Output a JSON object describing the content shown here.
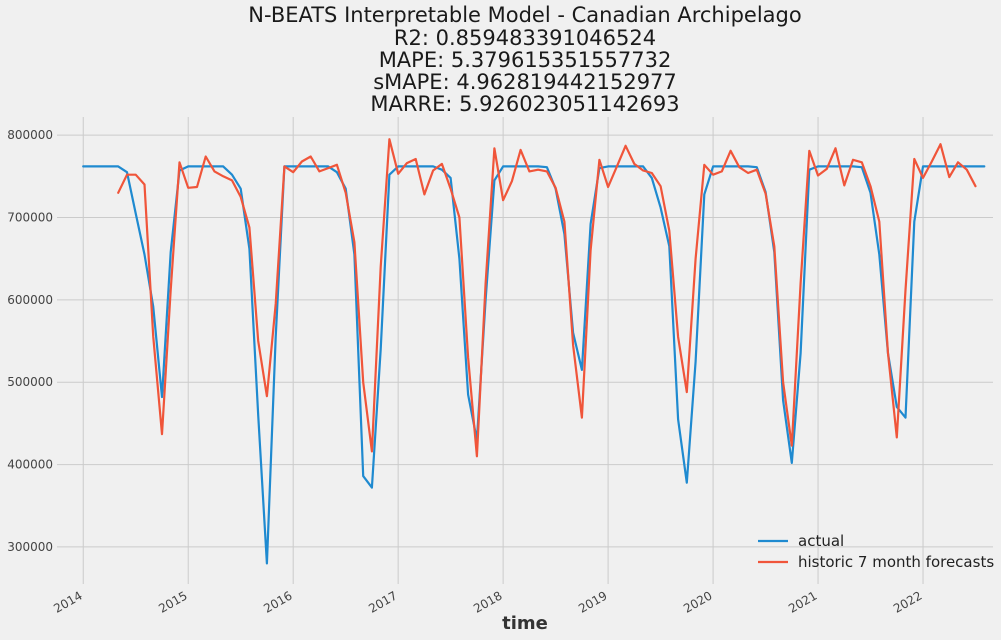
{
  "chart_data": {
    "type": "line",
    "title_lines": [
      "N-BEATS Interpretable Model - Canadian Archipelago",
      "R2: 0.859483391046524",
      "MAPE: 5.379615351557732",
      "sMAPE: 4.962819442152977",
      "MARRE: 5.926023051142693"
    ],
    "xlabel": "time",
    "ylabel": "",
    "x_ticks": [
      "2014",
      "2015",
      "2016",
      "2017",
      "2018",
      "2019",
      "2020",
      "2021",
      "2022"
    ],
    "y_ticks": [
      "300000",
      "400000",
      "500000",
      "600000",
      "700000",
      "800000"
    ],
    "ylim": [
      255000,
      822000
    ],
    "xlim": [
      "2013-10",
      "2022-09"
    ],
    "grid": true,
    "legend_position": "lower-right",
    "series": [
      {
        "name": "actual",
        "color": "#1f8ad0",
        "points": [
          [
            "2014-01",
            762000
          ],
          [
            "2014-02",
            762000
          ],
          [
            "2014-03",
            762000
          ],
          [
            "2014-04",
            762000
          ],
          [
            "2014-05",
            762000
          ],
          [
            "2014-06",
            755000
          ],
          [
            "2014-07",
            705000
          ],
          [
            "2014-08",
            655000
          ],
          [
            "2014-09",
            592000
          ],
          [
            "2014-10",
            482000
          ],
          [
            "2014-11",
            658000
          ],
          [
            "2014-12",
            757000
          ],
          [
            "2015-01",
            762000
          ],
          [
            "2015-02",
            762000
          ],
          [
            "2015-03",
            762000
          ],
          [
            "2015-04",
            762000
          ],
          [
            "2015-05",
            762000
          ],
          [
            "2015-06",
            752000
          ],
          [
            "2015-07",
            735000
          ],
          [
            "2015-08",
            662000
          ],
          [
            "2015-09",
            460000
          ],
          [
            "2015-10",
            280000
          ],
          [
            "2015-11",
            555000
          ],
          [
            "2015-12",
            762000
          ],
          [
            "2016-01",
            762000
          ],
          [
            "2016-02",
            762000
          ],
          [
            "2016-03",
            762000
          ],
          [
            "2016-04",
            762000
          ],
          [
            "2016-05",
            762000
          ],
          [
            "2016-06",
            755000
          ],
          [
            "2016-07",
            735000
          ],
          [
            "2016-08",
            655000
          ],
          [
            "2016-09",
            386000
          ],
          [
            "2016-10",
            372000
          ],
          [
            "2016-11",
            540000
          ],
          [
            "2016-12",
            752000
          ],
          [
            "2017-01",
            762000
          ],
          [
            "2017-02",
            762000
          ],
          [
            "2017-03",
            762000
          ],
          [
            "2017-04",
            762000
          ],
          [
            "2017-05",
            762000
          ],
          [
            "2017-06",
            758000
          ],
          [
            "2017-07",
            748000
          ],
          [
            "2017-08",
            650000
          ],
          [
            "2017-09",
            485000
          ],
          [
            "2017-10",
            430000
          ],
          [
            "2017-11",
            600000
          ],
          [
            "2017-12",
            745000
          ],
          [
            "2018-01",
            762000
          ],
          [
            "2018-02",
            762000
          ],
          [
            "2018-03",
            762000
          ],
          [
            "2018-04",
            762000
          ],
          [
            "2018-05",
            762000
          ],
          [
            "2018-06",
            761000
          ],
          [
            "2018-07",
            735000
          ],
          [
            "2018-08",
            680000
          ],
          [
            "2018-09",
            560000
          ],
          [
            "2018-10",
            515000
          ],
          [
            "2018-11",
            692000
          ],
          [
            "2018-12",
            760000
          ],
          [
            "2019-01",
            762000
          ],
          [
            "2019-02",
            762000
          ],
          [
            "2019-03",
            762000
          ],
          [
            "2019-04",
            762000
          ],
          [
            "2019-05",
            762000
          ],
          [
            "2019-06",
            748000
          ],
          [
            "2019-07",
            712000
          ],
          [
            "2019-08",
            665000
          ],
          [
            "2019-09",
            455000
          ],
          [
            "2019-10",
            378000
          ],
          [
            "2019-11",
            525000
          ],
          [
            "2019-12",
            728000
          ],
          [
            "2020-01",
            762000
          ],
          [
            "2020-02",
            762000
          ],
          [
            "2020-03",
            762000
          ],
          [
            "2020-04",
            762000
          ],
          [
            "2020-05",
            762000
          ],
          [
            "2020-06",
            761000
          ],
          [
            "2020-07",
            731000
          ],
          [
            "2020-08",
            658000
          ],
          [
            "2020-09",
            478000
          ],
          [
            "2020-10",
            402000
          ],
          [
            "2020-11",
            535000
          ],
          [
            "2020-12",
            758000
          ],
          [
            "2021-01",
            762000
          ],
          [
            "2021-02",
            762000
          ],
          [
            "2021-03",
            762000
          ],
          [
            "2021-04",
            762000
          ],
          [
            "2021-05",
            762000
          ],
          [
            "2021-06",
            761000
          ],
          [
            "2021-07",
            730000
          ],
          [
            "2021-08",
            655000
          ],
          [
            "2021-09",
            535000
          ],
          [
            "2021-10",
            470000
          ],
          [
            "2021-11",
            457000
          ],
          [
            "2021-12",
            695000
          ],
          [
            "2022-01",
            762000
          ],
          [
            "2022-02",
            762000
          ],
          [
            "2022-03",
            762000
          ],
          [
            "2022-04",
            762000
          ],
          [
            "2022-05",
            762000
          ],
          [
            "2022-06",
            762000
          ],
          [
            "2022-07",
            762000
          ],
          [
            "2022-08",
            762000
          ]
        ]
      },
      {
        "name": "historic 7 month forecasts",
        "color": "#f0553a",
        "points": [
          [
            "2014-05",
            730000
          ],
          [
            "2014-06",
            752000
          ],
          [
            "2014-07",
            752000
          ],
          [
            "2014-08",
            740000
          ],
          [
            "2014-09",
            556000
          ],
          [
            "2014-10",
            437000
          ],
          [
            "2014-11",
            612000
          ],
          [
            "2014-12",
            767000
          ],
          [
            "2015-01",
            736000
          ],
          [
            "2015-02",
            737000
          ],
          [
            "2015-03",
            774000
          ],
          [
            "2015-04",
            756000
          ],
          [
            "2015-05",
            750000
          ],
          [
            "2015-06",
            745000
          ],
          [
            "2015-07",
            725000
          ],
          [
            "2015-08",
            688000
          ],
          [
            "2015-09",
            550000
          ],
          [
            "2015-10",
            483000
          ],
          [
            "2015-11",
            595000
          ],
          [
            "2015-12",
            762000
          ],
          [
            "2016-01",
            755000
          ],
          [
            "2016-02",
            768000
          ],
          [
            "2016-03",
            774000
          ],
          [
            "2016-04",
            756000
          ],
          [
            "2016-05",
            760000
          ],
          [
            "2016-06",
            764000
          ],
          [
            "2016-07",
            730000
          ],
          [
            "2016-08",
            670000
          ],
          [
            "2016-09",
            500000
          ],
          [
            "2016-10",
            416000
          ],
          [
            "2016-11",
            640000
          ],
          [
            "2016-12",
            795000
          ],
          [
            "2017-01",
            753000
          ],
          [
            "2017-02",
            766000
          ],
          [
            "2017-03",
            771000
          ],
          [
            "2017-04",
            728000
          ],
          [
            "2017-05",
            757000
          ],
          [
            "2017-06",
            765000
          ],
          [
            "2017-07",
            735000
          ],
          [
            "2017-08",
            700000
          ],
          [
            "2017-09",
            530000
          ],
          [
            "2017-10",
            410000
          ],
          [
            "2017-11",
            620000
          ],
          [
            "2017-12",
            784000
          ],
          [
            "2018-01",
            721000
          ],
          [
            "2018-02",
            744000
          ],
          [
            "2018-03",
            782000
          ],
          [
            "2018-04",
            756000
          ],
          [
            "2018-05",
            758000
          ],
          [
            "2018-06",
            756000
          ],
          [
            "2018-07",
            736000
          ],
          [
            "2018-08",
            695000
          ],
          [
            "2018-09",
            545000
          ],
          [
            "2018-10",
            457000
          ],
          [
            "2018-11",
            660000
          ],
          [
            "2018-12",
            770000
          ],
          [
            "2019-01",
            737000
          ],
          [
            "2019-02",
            762000
          ],
          [
            "2019-03",
            787000
          ],
          [
            "2019-04",
            765000
          ],
          [
            "2019-05",
            757000
          ],
          [
            "2019-06",
            754000
          ],
          [
            "2019-07",
            738000
          ],
          [
            "2019-08",
            684000
          ],
          [
            "2019-09",
            555000
          ],
          [
            "2019-10",
            488000
          ],
          [
            "2019-11",
            650000
          ],
          [
            "2019-12",
            764000
          ],
          [
            "2020-01",
            752000
          ],
          [
            "2020-02",
            756000
          ],
          [
            "2020-03",
            781000
          ],
          [
            "2020-04",
            761000
          ],
          [
            "2020-05",
            754000
          ],
          [
            "2020-06",
            758000
          ],
          [
            "2020-07",
            729000
          ],
          [
            "2020-08",
            665000
          ],
          [
            "2020-09",
            500000
          ],
          [
            "2020-10",
            423000
          ],
          [
            "2020-11",
            620000
          ],
          [
            "2020-12",
            781000
          ],
          [
            "2021-01",
            751000
          ],
          [
            "2021-02",
            759000
          ],
          [
            "2021-03",
            784000
          ],
          [
            "2021-04",
            739000
          ],
          [
            "2021-05",
            770000
          ],
          [
            "2021-06",
            767000
          ],
          [
            "2021-07",
            738000
          ],
          [
            "2021-08",
            695000
          ],
          [
            "2021-09",
            535000
          ],
          [
            "2021-10",
            433000
          ],
          [
            "2021-11",
            612000
          ],
          [
            "2021-12",
            771000
          ],
          [
            "2022-01",
            748000
          ],
          [
            "2022-02",
            768000
          ],
          [
            "2022-03",
            789000
          ],
          [
            "2022-04",
            749000
          ],
          [
            "2022-05",
            767000
          ],
          [
            "2022-06",
            758000
          ],
          [
            "2022-07",
            738000
          ]
        ]
      }
    ]
  }
}
